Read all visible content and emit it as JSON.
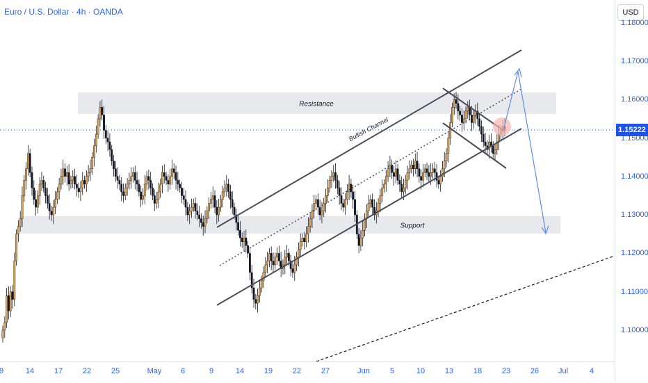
{
  "chart_header": {
    "title": "Euro / U.S. Dollar · 4h · OANDA",
    "currency": "USD"
  },
  "current_price": {
    "label": "1.15222",
    "value": 1.15222
  },
  "annotations": {
    "resistance": "Resistance",
    "support": "Support",
    "channel": "Bullish Channel"
  },
  "chart_data": {
    "type": "candlestick",
    "title": "Euro / U.S. Dollar · 4h · OANDA",
    "y_ticks": [
      "1.18000",
      "1.17000",
      "1.16000",
      "1.15000",
      "1.14000",
      "1.13000",
      "1.12000",
      "1.11000",
      "1.10000"
    ],
    "x_ticks": [
      "9",
      "14",
      "17",
      "22",
      "25",
      "May",
      "6",
      "9",
      "14",
      "19",
      "22",
      "27",
      "Jun",
      "5",
      "10",
      "13",
      "18",
      "23",
      "26",
      "Jul",
      "4"
    ],
    "ylim": [
      1.089,
      1.183
    ],
    "closes": [
      1.1,
      1.102,
      1.109,
      1.105,
      1.11,
      1.108,
      1.118,
      1.125,
      1.127,
      1.129,
      1.135,
      1.139,
      1.142,
      1.146,
      1.141,
      1.137,
      1.134,
      1.132,
      1.135,
      1.138,
      1.139,
      1.137,
      1.135,
      1.133,
      1.131,
      1.13,
      1.132,
      1.134,
      1.136,
      1.138,
      1.14,
      1.142,
      1.14,
      1.141,
      1.138,
      1.139,
      1.14,
      1.138,
      1.137,
      1.136,
      1.137,
      1.139,
      1.138,
      1.14,
      1.141,
      1.142,
      1.145,
      1.148,
      1.151,
      1.155,
      1.158,
      1.156,
      1.152,
      1.15,
      1.149,
      1.147,
      1.144,
      1.142,
      1.14,
      1.139,
      1.138,
      1.136,
      1.135,
      1.137,
      1.138,
      1.139,
      1.14,
      1.141,
      1.139,
      1.138,
      1.136,
      1.134,
      1.135,
      1.138,
      1.14,
      1.139,
      1.137,
      1.135,
      1.133,
      1.134,
      1.136,
      1.138,
      1.141,
      1.14,
      1.139,
      1.138,
      1.14,
      1.142,
      1.141,
      1.139,
      1.138,
      1.137,
      1.135,
      1.134,
      1.132,
      1.13,
      1.131,
      1.132,
      1.133,
      1.131,
      1.13,
      1.129,
      1.128,
      1.127,
      1.129,
      1.131,
      1.133,
      1.134,
      1.135,
      1.132,
      1.13,
      1.132,
      1.134,
      1.136,
      1.137,
      1.138,
      1.136,
      1.134,
      1.132,
      1.13,
      1.128,
      1.126,
      1.124,
      1.123,
      1.124,
      1.122,
      1.12,
      1.115,
      1.111,
      1.108,
      1.107,
      1.109,
      1.111,
      1.113,
      1.115,
      1.117,
      1.118,
      1.12,
      1.118,
      1.117,
      1.119,
      1.12,
      1.118,
      1.116,
      1.117,
      1.119,
      1.12,
      1.118,
      1.116,
      1.115,
      1.117,
      1.119,
      1.121,
      1.123,
      1.124,
      1.123,
      1.125,
      1.127,
      1.129,
      1.131,
      1.133,
      1.134,
      1.132,
      1.13,
      1.131,
      1.133,
      1.135,
      1.137,
      1.139,
      1.14,
      1.141,
      1.139,
      1.137,
      1.135,
      1.133,
      1.132,
      1.134,
      1.136,
      1.138,
      1.136,
      1.134,
      1.13,
      1.125,
      1.122,
      1.124,
      1.126,
      1.129,
      1.131,
      1.133,
      1.134,
      1.132,
      1.13,
      1.131,
      1.133,
      1.135,
      1.137,
      1.138,
      1.14,
      1.142,
      1.143,
      1.141,
      1.14,
      1.142,
      1.139,
      1.138,
      1.136,
      1.137,
      1.139,
      1.141,
      1.142,
      1.143,
      1.142,
      1.144,
      1.142,
      1.14,
      1.139,
      1.141,
      1.142,
      1.141,
      1.14,
      1.141,
      1.142,
      1.141,
      1.139,
      1.138,
      1.14,
      1.142,
      1.144,
      1.146,
      1.15,
      1.154,
      1.158,
      1.16,
      1.159,
      1.157,
      1.156,
      1.154,
      1.155,
      1.157,
      1.158,
      1.156,
      1.154,
      1.156,
      1.157,
      1.155,
      1.153,
      1.151,
      1.149,
      1.148,
      1.147,
      1.149,
      1.148,
      1.146,
      1.147,
      1.149,
      1.151,
      1.152,
      1.153,
      1.1522
    ]
  }
}
